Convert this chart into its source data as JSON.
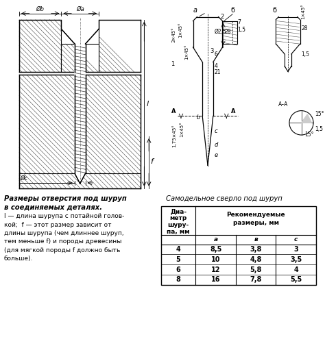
{
  "bg_color": "#ffffff",
  "table_subheader": [
    "a",
    "в",
    "c"
  ],
  "table_data": [
    [
      "4",
      "8,5",
      "3,8",
      "3"
    ],
    [
      "5",
      "10",
      "4,8",
      "3,5"
    ],
    [
      "6",
      "12",
      "5,8",
      "4"
    ],
    [
      "8",
      "16",
      "7,8",
      "5,5"
    ]
  ]
}
